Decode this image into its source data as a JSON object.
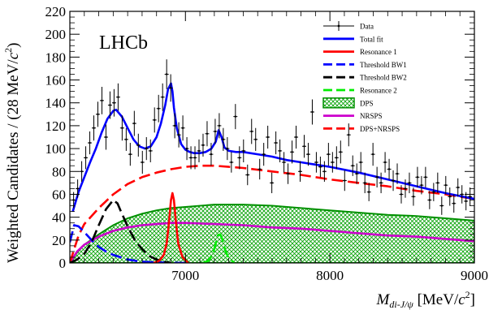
{
  "chart_data": {
    "type": "line",
    "experiment_label": "LHCb",
    "xlabel": "M_di-J/ψ [MeV/c²]",
    "xlabel_parts": {
      "main": "M",
      "sub": "di-J/ψ",
      "unit_open": " [MeV/",
      "unit_c": "c",
      "unit_sup": "2",
      "unit_close": "]"
    },
    "ylabel": "Weighted Candidates / (28 MeV/c²)",
    "ylabel_parts": {
      "main": "Weighted Candidates / (28 MeV/",
      "c": "c",
      "sup": "2",
      "close": ")"
    },
    "xlim": [
      6200,
      9000
    ],
    "ylim": [
      0,
      220
    ],
    "x_ticks": [
      7000,
      8000,
      9000
    ],
    "x_tick_labels": [
      "7000",
      "8000",
      "9000"
    ],
    "y_ticks": [
      0,
      20,
      40,
      60,
      80,
      100,
      120,
      140,
      160,
      180,
      200,
      220
    ],
    "y_tick_labels": [
      "0",
      "20",
      "40",
      "60",
      "80",
      "100",
      "120",
      "140",
      "160",
      "180",
      "200",
      "220"
    ],
    "legend_position": "top-right",
    "legend": [
      {
        "key": "data",
        "label": "Data",
        "style": "errorbar",
        "color": "#000000"
      },
      {
        "key": "total",
        "label": "Total fit",
        "style": "solid",
        "color": "#0000ff"
      },
      {
        "key": "res1",
        "label": "Resonance 1",
        "style": "solid",
        "color": "#ff0000"
      },
      {
        "key": "bw1",
        "label": "Threshold BW1",
        "style": "dashed",
        "color": "#0000ff"
      },
      {
        "key": "bw2",
        "label": "Threshold BW2",
        "style": "dashed",
        "color": "#000000"
      },
      {
        "key": "res2",
        "label": "Resonance 2",
        "style": "dashed",
        "color": "#00ee00"
      },
      {
        "key": "dps",
        "label": "DPS",
        "style": "hatched",
        "color": "#00aa00"
      },
      {
        "key": "nrsps",
        "label": "NRSPS",
        "style": "solid",
        "color": "#cc00cc"
      },
      {
        "key": "dpsnrsps",
        "label": "DPS+NRSPS",
        "style": "dashed",
        "color": "#ff0000"
      }
    ],
    "series": [
      {
        "key": "total",
        "x": [
          6220,
          6260,
          6300,
          6340,
          6380,
          6420,
          6460,
          6500,
          6520,
          6560,
          6600,
          6640,
          6680,
          6720,
          6760,
          6800,
          6830,
          6860,
          6880,
          6900,
          6910,
          6920,
          6940,
          6970,
          7000,
          7030,
          7060,
          7100,
          7140,
          7180,
          7210,
          7230,
          7250,
          7270,
          7300,
          7350,
          7400,
          7500,
          7600,
          7700,
          7800,
          7900,
          8000,
          8200,
          8400,
          8600,
          8800,
          9000
        ],
        "y": [
          45,
          62,
          75,
          88,
          100,
          114,
          126,
          133,
          134,
          128,
          118,
          108,
          102,
          100,
          102,
          110,
          122,
          138,
          152,
          157,
          150,
          136,
          118,
          104,
          99,
          97,
          96,
          96,
          97,
          100,
          106,
          116,
          110,
          101,
          98,
          97,
          97,
          95,
          93,
          90,
          88,
          86,
          84,
          79,
          73,
          67,
          61,
          56
        ]
      },
      {
        "key": "res1",
        "x": [
          6780,
          6820,
          6850,
          6870,
          6885,
          6900,
          6910,
          6920,
          6935,
          6950,
          6980,
          7020
        ],
        "y": [
          0,
          2,
          7,
          17,
          34,
          55,
          61,
          55,
          35,
          17,
          5,
          0
        ]
      },
      {
        "key": "bw1",
        "x": [
          6200,
          6230,
          6260,
          6300,
          6350,
          6400,
          6450,
          6500,
          6600,
          6700,
          6800,
          6900,
          7000
        ],
        "y": [
          18,
          33,
          32,
          27,
          20,
          14,
          10,
          7,
          3,
          1,
          0.5,
          0.2,
          0
        ]
      },
      {
        "key": "bw2",
        "x": [
          6200,
          6250,
          6300,
          6350,
          6400,
          6450,
          6500,
          6530,
          6550,
          6600,
          6650,
          6700,
          6750,
          6800,
          6850,
          6900
        ],
        "y": [
          0,
          3,
          8,
          18,
          33,
          47,
          55,
          52,
          46,
          32,
          20,
          12,
          6,
          3,
          1,
          0
        ]
      },
      {
        "key": "res2",
        "x": [
          7120,
          7160,
          7190,
          7210,
          7225,
          7240,
          7255,
          7275,
          7300,
          7340
        ],
        "y": [
          0,
          2,
          8,
          17,
          24,
          25,
          21,
          11,
          4,
          0
        ]
      },
      {
        "key": "dps",
        "x": [
          6200,
          6250,
          6300,
          6400,
          6500,
          6600,
          6700,
          6800,
          6900,
          7000,
          7200,
          7400,
          7600,
          7800,
          8000,
          8200,
          8400,
          8600,
          8800,
          9000
        ],
        "y": [
          0,
          9,
          16,
          25,
          33,
          39,
          43,
          46,
          48,
          49,
          51,
          51,
          50,
          48,
          46,
          44,
          42,
          41,
          39,
          37
        ]
      },
      {
        "key": "nrsps",
        "x": [
          6200,
          6250,
          6300,
          6400,
          6500,
          6600,
          6700,
          6800,
          6900,
          7000,
          7200,
          7400,
          7600,
          7800,
          8000,
          8200,
          8400,
          8600,
          8800,
          9000
        ],
        "y": [
          0,
          10,
          16,
          23,
          28,
          31,
          33,
          34,
          35,
          35,
          34,
          33,
          31,
          30,
          28,
          26,
          24,
          23,
          21,
          19
        ]
      },
      {
        "key": "dpsnrsps",
        "x": [
          6200,
          6230,
          6260,
          6300,
          6400,
          6500,
          6600,
          6700,
          6800,
          6900,
          7000,
          7100,
          7200,
          7300,
          7400,
          7600,
          7800,
          8000,
          8200,
          8400,
          8600,
          8800,
          9000
        ],
        "y": [
          0,
          12,
          24,
          34,
          48,
          60,
          69,
          75,
          79,
          82,
          84,
          85,
          85,
          84,
          83,
          80,
          77,
          73,
          70,
          67,
          63,
          60,
          56
        ]
      }
    ],
    "data_points": {
      "x": [
        6226,
        6254,
        6282,
        6310,
        6338,
        6366,
        6394,
        6422,
        6450,
        6478,
        6506,
        6534,
        6562,
        6590,
        6618,
        6646,
        6674,
        6702,
        6730,
        6758,
        6786,
        6814,
        6842,
        6870,
        6898,
        6926,
        6954,
        6982,
        7010,
        7038,
        7066,
        7094,
        7122,
        7150,
        7178,
        7206,
        7234,
        7262,
        7290,
        7318,
        7346,
        7374,
        7402,
        7430,
        7458,
        7486,
        7514,
        7542,
        7570,
        7598,
        7626,
        7654,
        7682,
        7710,
        7738,
        7766,
        7794,
        7822,
        7850,
        7878,
        7906,
        7934,
        7962,
        7990,
        8018,
        8046,
        8074,
        8102,
        8130,
        8158,
        8186,
        8214,
        8242,
        8270,
        8298,
        8326,
        8354,
        8382,
        8410,
        8438,
        8466,
        8494,
        8522,
        8550,
        8578,
        8606,
        8634,
        8662,
        8690,
        8718,
        8746,
        8774,
        8802,
        8830,
        8858,
        8886,
        8914,
        8942,
        8970
      ],
      "y": [
        55,
        65,
        80,
        92,
        105,
        118,
        130,
        142,
        110,
        138,
        140,
        145,
        118,
        108,
        95,
        122,
        103,
        88,
        100,
        98,
        125,
        135,
        145,
        165,
        153,
        120,
        112,
        118,
        100,
        92,
        92,
        98,
        103,
        113,
        95,
        115,
        120,
        108,
        100,
        88,
        128,
        92,
        98,
        77,
        115,
        108,
        82,
        95,
        110,
        70,
        105,
        98,
        88,
        78,
        97,
        110,
        80,
        102,
        95,
        132,
        88,
        84,
        80,
        95,
        88,
        92,
        97,
        72,
        112,
        85,
        78,
        88,
        70,
        62,
        95,
        75,
        70,
        88,
        82,
        72,
        78,
        60,
        65,
        70,
        58,
        75,
        68,
        75,
        55,
        62,
        70,
        50,
        68,
        58,
        52,
        66,
        60,
        54,
        58
      ],
      "err": [
        7,
        8,
        9,
        10,
        10,
        11,
        11,
        12,
        11,
        12,
        12,
        12,
        11,
        10,
        10,
        11,
        10,
        10,
        10,
        10,
        11,
        12,
        12,
        13,
        12,
        11,
        11,
        11,
        10,
        10,
        10,
        10,
        10,
        11,
        10,
        11,
        11,
        10,
        10,
        9,
        11,
        10,
        10,
        9,
        11,
        10,
        9,
        10,
        10,
        9,
        10,
        10,
        9,
        9,
        10,
        10,
        9,
        10,
        10,
        11,
        9,
        9,
        9,
        10,
        9,
        10,
        10,
        9,
        10,
        9,
        9,
        9,
        9,
        8,
        10,
        9,
        9,
        9,
        9,
        9,
        9,
        8,
        8,
        9,
        8,
        9,
        8,
        9,
        8,
        8,
        9,
        8,
        8,
        8,
        8,
        8,
        8,
        8,
        8
      ]
    }
  }
}
